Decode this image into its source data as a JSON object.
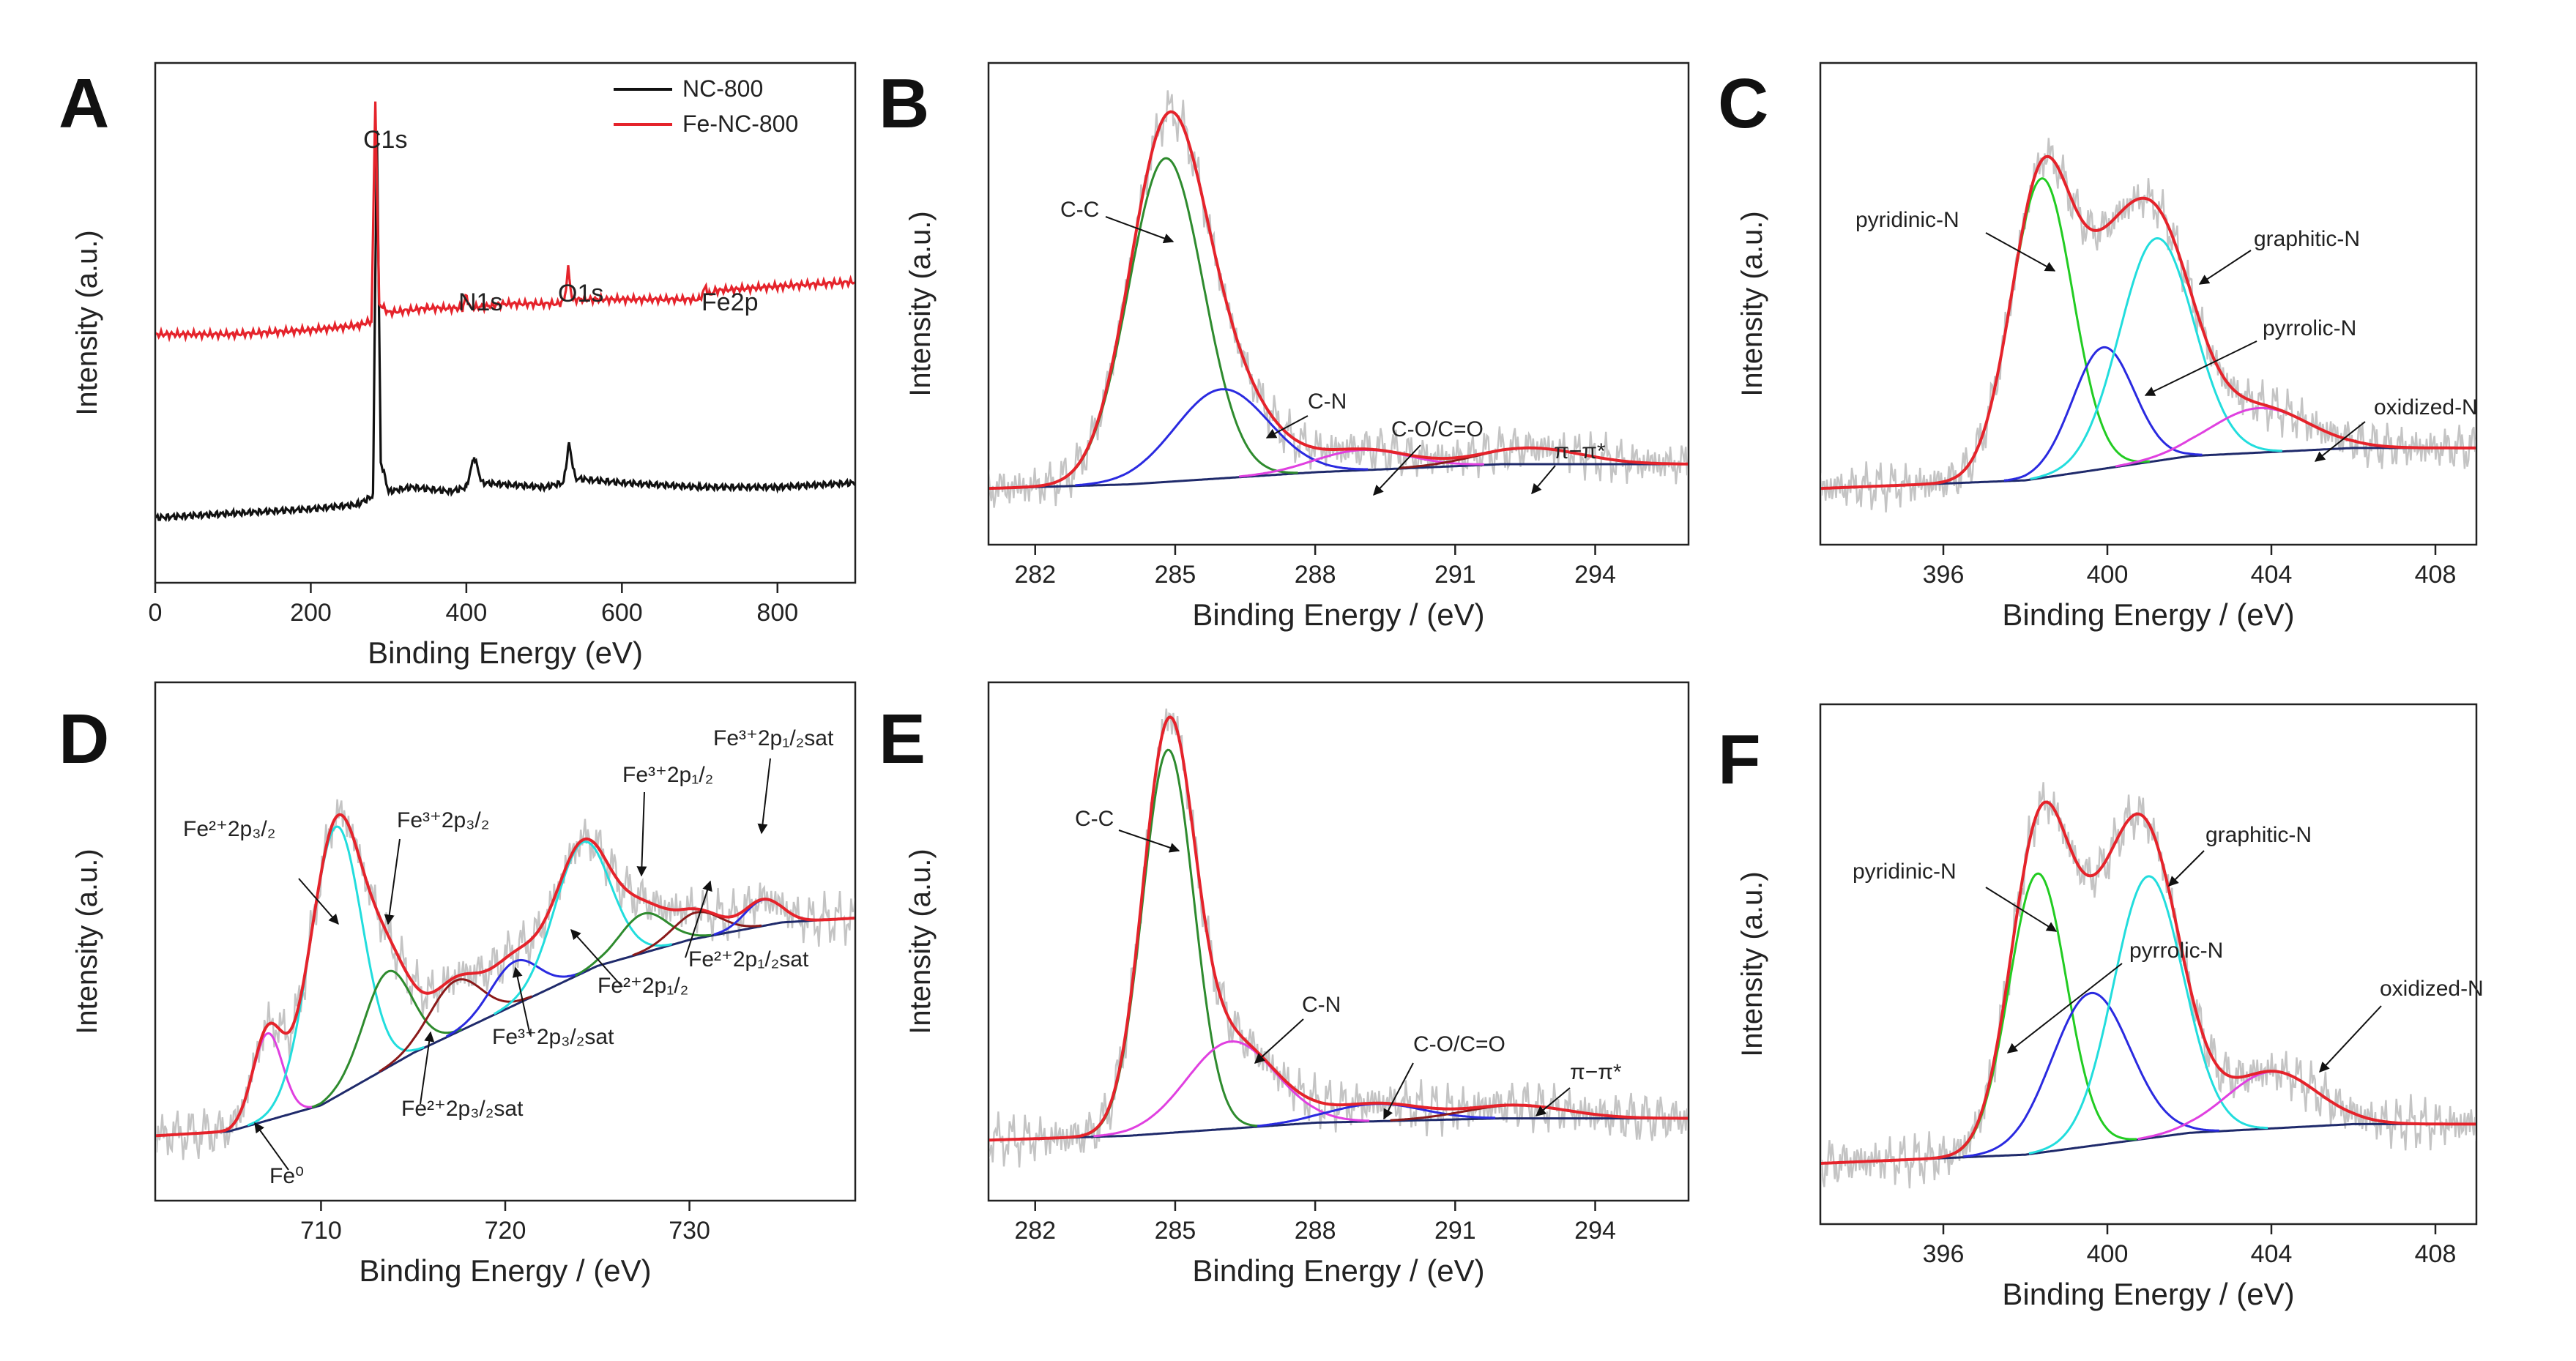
{
  "chart_data": [
    {
      "panel": "A",
      "type": "line",
      "xlabel": "Binding Energy (eV)",
      "ylabel": "Intensity (a.u.)",
      "xlim": [
        0,
        900
      ],
      "ylim": [
        0,
        100
      ],
      "xticks": [
        0,
        200,
        400,
        600,
        800
      ],
      "legend": {
        "position": "top-right",
        "entries": [
          "NC-800",
          "Fe-NC-800"
        ]
      },
      "series": [
        {
          "name": "NC-800",
          "color": "#111111",
          "x": [
            0,
            100,
            200,
            260,
            280,
            285,
            290,
            300,
            330,
            380,
            400,
            410,
            420,
            500,
            525,
            532,
            540,
            600,
            700,
            800,
            900
          ],
          "y": [
            3,
            4,
            5,
            6,
            8,
            92,
            16,
            9,
            10,
            9,
            10,
            17,
            11,
            10,
            11,
            20,
            12,
            11,
            10,
            10,
            11
          ]
        },
        {
          "name": "Fe-NC-800",
          "color": "#e5232b",
          "x": [
            0,
            100,
            200,
            260,
            278,
            283,
            288,
            300,
            350,
            395,
            400,
            405,
            450,
            520,
            526,
            531,
            536,
            600,
            700,
            708,
            712,
            720,
            800,
            900
          ],
          "y": [
            45,
            45,
            46,
            47,
            48,
            99,
            52,
            50,
            51,
            51,
            54,
            51,
            52,
            52,
            53,
            60,
            53,
            53,
            53,
            56,
            54,
            55,
            56,
            57
          ]
        }
      ],
      "annotations": [
        "C1s",
        "N1s",
        "O1s",
        "Fe2p"
      ]
    },
    {
      "panel": "B",
      "type": "line",
      "xlabel": "Binding Energy / (eV)",
      "ylabel": "Intensity (a.u.)",
      "xlim": [
        281,
        296
      ],
      "ylim": [
        0,
        100
      ],
      "xticks": [
        282,
        285,
        288,
        291,
        294
      ],
      "baseline": [
        [
          281,
          2
        ],
        [
          284,
          3
        ],
        [
          288,
          6
        ],
        [
          292,
          8
        ],
        [
          296,
          8
        ]
      ],
      "components": [
        {
          "name": "C-C",
          "color": "#2e8b2e",
          "center": 284.8,
          "height": 80,
          "width": 0.8
        },
        {
          "name": "C-N",
          "color": "#2a2ae0",
          "center": 286.0,
          "height": 22,
          "width": 1.0
        },
        {
          "name": "C-O/C=O",
          "color": "#e040e0",
          "center": 289.0,
          "height": 5,
          "width": 1.0
        },
        {
          "name": "π−π*",
          "color": "#8b1a1a",
          "center": 292.6,
          "height": 4,
          "width": 1.1
        }
      ],
      "envelope": {
        "name": "envelope",
        "color": "#e5232b"
      },
      "annotations": [
        "C-C",
        "C-N",
        "C-O/C=O",
        "π−π*"
      ]
    },
    {
      "panel": "C",
      "type": "line",
      "xlabel": "Binding Energy / (eV)",
      "ylabel": "Intensity (a.u.)",
      "xlim": [
        393,
        409
      ],
      "ylim": [
        0,
        100
      ],
      "xticks": [
        396,
        400,
        404,
        408
      ],
      "baseline": [
        [
          393,
          2
        ],
        [
          398,
          4
        ],
        [
          402,
          10
        ],
        [
          406,
          12
        ],
        [
          409,
          12
        ]
      ],
      "components": [
        {
          "name": "pyridinic-N",
          "color": "#22cc22",
          "center": 398.4,
          "height": 74,
          "width": 0.75
        },
        {
          "name": "pyrrolic-N",
          "color": "#2a2ae0",
          "center": 399.9,
          "height": 30,
          "width": 0.75
        },
        {
          "name": "graphitic-N",
          "color": "#22dddd",
          "center": 401.2,
          "height": 55,
          "width": 0.9
        },
        {
          "name": "oxidized-N",
          "color": "#e040e0",
          "center": 403.7,
          "height": 11,
          "width": 1.2
        }
      ],
      "envelope": {
        "name": "envelope",
        "color": "#e5232b"
      },
      "annotations": [
        "pyridinic-N",
        "graphitic-N",
        "pyrrolic-N",
        "oxidized-N"
      ]
    },
    {
      "panel": "D",
      "type": "line",
      "xlabel": "Binding Energy / (eV)",
      "ylabel": "Intensity (a.u.)",
      "xlim": [
        701,
        739
      ],
      "ylim": [
        0,
        100
      ],
      "xticks": [
        710,
        720,
        730
      ],
      "baseline": [
        [
          701,
          3
        ],
        [
          705,
          4
        ],
        [
          710,
          10
        ],
        [
          715,
          22
        ],
        [
          720,
          32
        ],
        [
          725,
          42
        ],
        [
          730,
          48
        ],
        [
          735,
          52
        ],
        [
          739,
          53
        ]
      ],
      "components": [
        {
          "name": "Fe0",
          "color": "#e040e0",
          "center": 707.1,
          "height": 20,
          "width": 0.8
        },
        {
          "name": "Fe2+2p3/2",
          "color": "#22dddd",
          "center": 710.8,
          "height": 62,
          "width": 1.4
        },
        {
          "name": "Fe3+2p3/2",
          "color": "#2e8b2e",
          "center": 713.6,
          "height": 22,
          "width": 1.3
        },
        {
          "name": "Fe2+2p3/2sat",
          "color": "#8b1a1a",
          "center": 717.3,
          "height": 12,
          "width": 1.4
        },
        {
          "name": "Fe3+2p3/2sat",
          "color": "#2a2ae0",
          "center": 720.5,
          "height": 10,
          "width": 1.3
        },
        {
          "name": "Fe2+2p1/2",
          "color": "#22dddd",
          "center": 724.2,
          "height": 30,
          "width": 1.5
        },
        {
          "name": "Fe3+2p1/2",
          "color": "#2e8b2e",
          "center": 727.5,
          "height": 9,
          "width": 1.3
        },
        {
          "name": "Fe2+2p1/2sat",
          "color": "#8b1a1a",
          "center": 730.4,
          "height": 6,
          "width": 1.3
        },
        {
          "name": "Fe3+2p1/2sat",
          "color": "#2a2ae0",
          "center": 734.0,
          "height": 6,
          "width": 1.0
        }
      ],
      "envelope": {
        "name": "envelope",
        "color": "#e5232b"
      },
      "annotations": [
        "Fe²⁺2p₃/₂",
        "Fe³⁺2p₃/₂",
        "Fe³⁺2p₁/₂",
        "Fe³⁺2p₁/₂sat",
        "Fe²⁺2p₁/₂",
        "Fe²⁺2p₁/₂sat",
        "Fe³⁺2p₃/₂sat",
        "Fe²⁺2p₃/₂sat",
        "Fe⁰"
      ]
    },
    {
      "panel": "E",
      "type": "line",
      "xlabel": "Binding Energy / (eV)",
      "ylabel": "Intensity (a.u.)",
      "xlim": [
        281,
        296
      ],
      "ylim": [
        0,
        100
      ],
      "xticks": [
        282,
        285,
        288,
        291,
        294
      ],
      "baseline": [
        [
          281,
          2
        ],
        [
          284,
          3
        ],
        [
          288,
          6
        ],
        [
          292,
          7
        ],
        [
          296,
          7
        ]
      ],
      "components": [
        {
          "name": "C-C",
          "color": "#2e8b2e",
          "center": 284.85,
          "height": 88,
          "width": 0.55
        },
        {
          "name": "C-N",
          "color": "#e040e0",
          "center": 286.2,
          "height": 20,
          "width": 0.95
        },
        {
          "name": "C-O/C=O",
          "color": "#2a2ae0",
          "center": 289.3,
          "height": 4,
          "width": 1.0
        },
        {
          "name": "π−π*",
          "color": "#8b1a1a",
          "center": 292.3,
          "height": 3,
          "width": 1.1
        }
      ],
      "envelope": {
        "name": "envelope",
        "color": "#e5232b"
      },
      "annotations": [
        "C-C",
        "C-N",
        "C-O/C=O",
        "π−π*"
      ]
    },
    {
      "panel": "F",
      "type": "line",
      "xlabel": "Binding Energy / (eV)",
      "ylabel": "Intensity (a.u.)",
      "xlim": [
        393,
        409
      ],
      "ylim": [
        0,
        100
      ],
      "xticks": [
        396,
        400,
        404,
        408
      ],
      "baseline": [
        [
          393,
          2
        ],
        [
          398,
          4
        ],
        [
          402,
          9
        ],
        [
          406,
          11
        ],
        [
          409,
          11
        ]
      ],
      "components": [
        {
          "name": "pyridinic-N",
          "color": "#22cc22",
          "center": 398.3,
          "height": 64,
          "width": 0.7
        },
        {
          "name": "pyrrolic-N",
          "color": "#2a2ae0",
          "center": 399.6,
          "height": 35,
          "width": 0.95
        },
        {
          "name": "graphitic-N",
          "color": "#22dddd",
          "center": 401.0,
          "height": 60,
          "width": 0.85
        },
        {
          "name": "oxidized-N",
          "color": "#e040e0",
          "center": 404.0,
          "height": 13,
          "width": 1.1
        }
      ],
      "envelope": {
        "name": "envelope",
        "color": "#e5232b"
      },
      "annotations": [
        "pyridinic-N",
        "graphitic-N",
        "pyrrolic-N",
        "oxidized-N"
      ]
    }
  ]
}
